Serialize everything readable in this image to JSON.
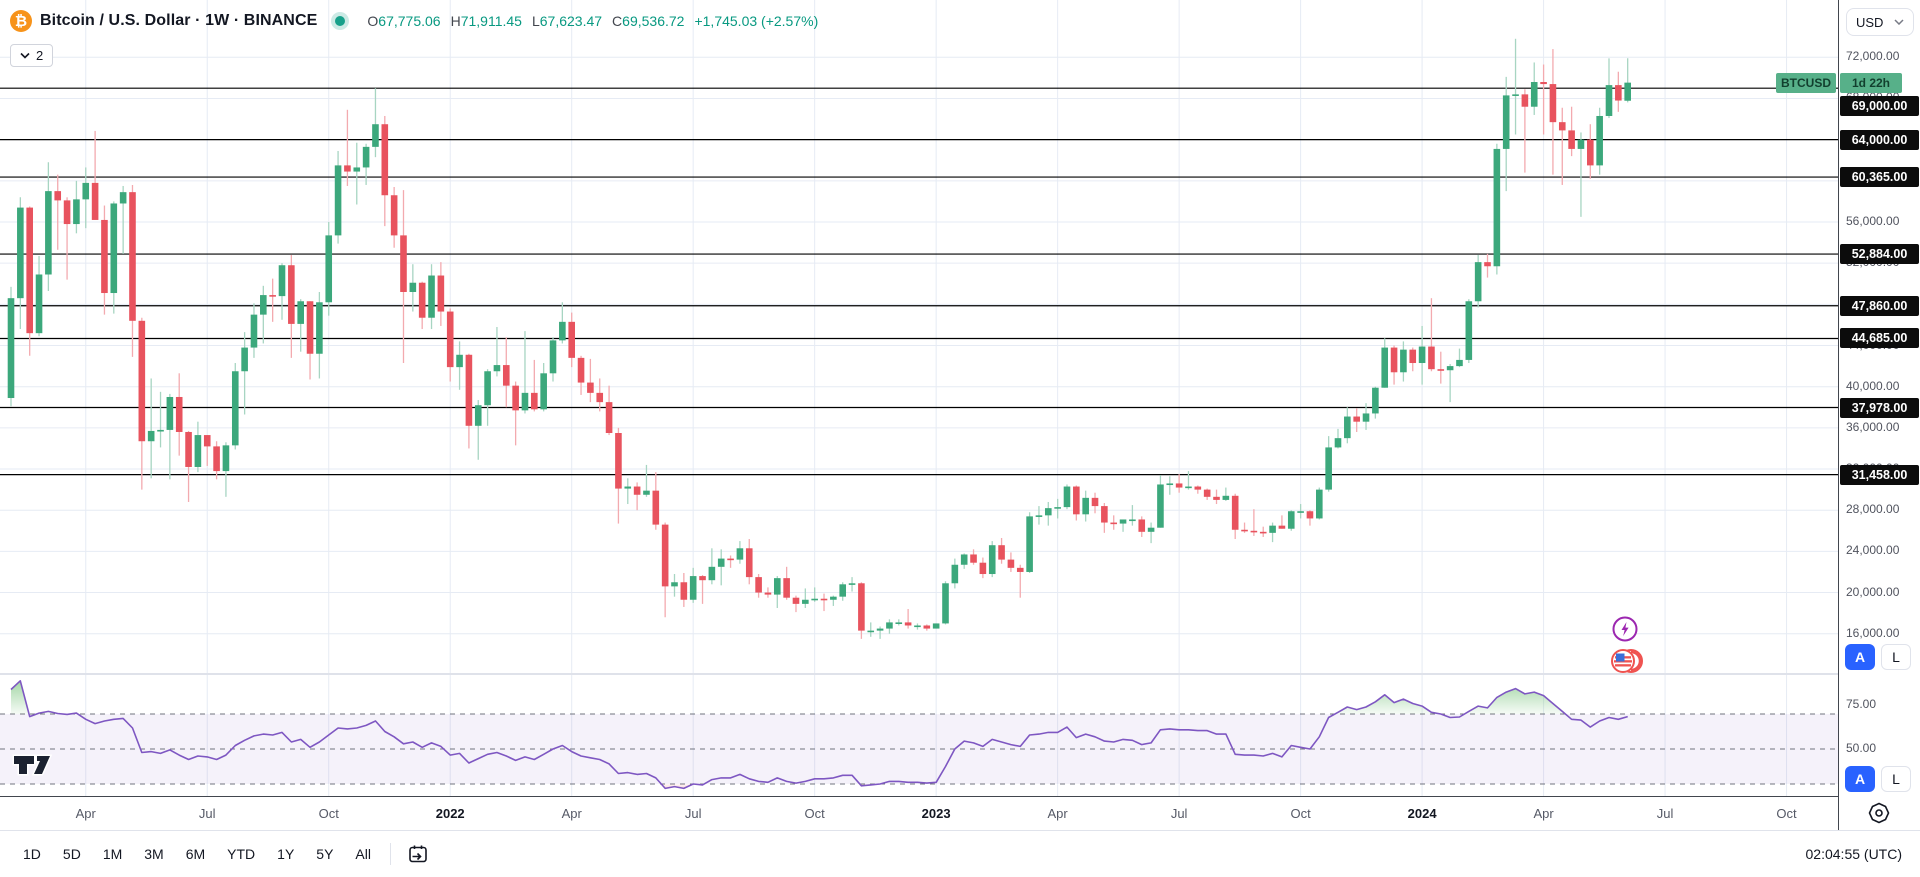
{
  "header": {
    "title": "Bitcoin / U.S. Dollar · 1W · BINANCE",
    "collapse_count": "2",
    "ohlc": [
      {
        "k": "O",
        "v": "67,775.06"
      },
      {
        "k": "H",
        "v": "71,911.45"
      },
      {
        "k": "L",
        "v": "67,623.47"
      },
      {
        "k": "C",
        "v": "69,536.72"
      }
    ],
    "change": "+1,745.03 (+2.57%)"
  },
  "price_axis": {
    "currency": "USD",
    "grid_labels": [
      {
        "price": 72000,
        "label": "72,000.00"
      },
      {
        "price": 68000,
        "label": "68,000.00"
      },
      {
        "price": 64000,
        "label": "64,000.00"
      },
      {
        "price": 60000,
        "label": "60,000.00"
      },
      {
        "price": 56000,
        "label": "56,000.00"
      },
      {
        "price": 52000,
        "label": "52,000.00"
      },
      {
        "price": 48000,
        "label": "48,000.00"
      },
      {
        "price": 44000,
        "label": "44,000.00"
      },
      {
        "price": 40000,
        "label": "40,000.00"
      },
      {
        "price": 36000,
        "label": "36,000.00"
      },
      {
        "price": 32000,
        "label": "32,000.00"
      },
      {
        "price": 28000,
        "label": "28,000.00"
      },
      {
        "price": 24000,
        "label": "24,000.00"
      },
      {
        "price": 20000,
        "label": "20,000.00"
      },
      {
        "price": 16000,
        "label": "16,000.00"
      }
    ],
    "level_badges": [
      {
        "price": 69000,
        "label": "69,000.00"
      },
      {
        "price": 64000,
        "label": "64,000.00"
      },
      {
        "price": 60365,
        "label": "60,365.00"
      },
      {
        "price": 52884,
        "label": "52,884.00"
      },
      {
        "price": 47860,
        "label": "47,860.00"
      },
      {
        "price": 44685,
        "label": "44,685.00"
      },
      {
        "price": 37978,
        "label": "37,978.00"
      },
      {
        "price": 31458,
        "label": "31,458.00"
      }
    ],
    "a_button": "A",
    "l_button": "L"
  },
  "symbol_chip": {
    "label": "BTCUSD",
    "countdown": "1d 22h"
  },
  "rsi_axis": [
    {
      "value": 75,
      "label": "75.00"
    },
    {
      "value": 50,
      "label": "50.00"
    }
  ],
  "time_axis": {
    "ticks": [
      {
        "label": "Apr",
        "week": 8,
        "year": false
      },
      {
        "label": "Jul",
        "week": 21,
        "year": false
      },
      {
        "label": "Oct",
        "week": 34,
        "year": false
      },
      {
        "label": "2022",
        "week": 47,
        "year": true
      },
      {
        "label": "Apr",
        "week": 60,
        "year": false
      },
      {
        "label": "Jul",
        "week": 73,
        "year": false
      },
      {
        "label": "Oct",
        "week": 86,
        "year": false
      },
      {
        "label": "2023",
        "week": 99,
        "year": true
      },
      {
        "label": "Apr",
        "week": 112,
        "year": false
      },
      {
        "label": "Jul",
        "week": 125,
        "year": false
      },
      {
        "label": "Oct",
        "week": 138,
        "year": false
      },
      {
        "label": "2024",
        "week": 151,
        "year": true
      },
      {
        "label": "Apr",
        "week": 164,
        "year": false
      },
      {
        "label": "Jul",
        "week": 177,
        "year": false
      },
      {
        "label": "Oct",
        "week": 190,
        "year": false
      }
    ]
  },
  "toolbar": {
    "ranges": [
      "1D",
      "5D",
      "1M",
      "3M",
      "6M",
      "YTD",
      "1Y",
      "5Y",
      "All"
    ],
    "clock": "02:04:55 (UTC)"
  },
  "chart_data": {
    "type": "candlestick_with_rsi",
    "symbol": "BTCUSD",
    "interval": "1W",
    "level_lines": [
      69000,
      64000,
      60365,
      52884,
      47860,
      44685,
      37978,
      31458
    ],
    "price_grid": {
      "min": 16000,
      "max": 72000,
      "step": 4000
    },
    "rsi_bands": [
      70,
      50,
      30
    ],
    "candles_usd_thousands": [
      [
        38.9,
        49.7,
        38.1,
        48.6
      ],
      [
        48.6,
        58.4,
        45.6,
        57.4
      ],
      [
        57.4,
        57.5,
        43.0,
        45.2
      ],
      [
        45.2,
        52.7,
        44.9,
        50.9
      ],
      [
        50.9,
        61.8,
        49.3,
        59.0
      ],
      [
        59.0,
        60.6,
        53.3,
        58.1
      ],
      [
        58.1,
        58.4,
        50.4,
        55.8
      ],
      [
        55.8,
        60.0,
        54.9,
        58.2
      ],
      [
        58.2,
        61.3,
        55.4,
        59.8
      ],
      [
        59.8,
        64.85,
        59.5,
        56.2
      ],
      [
        56.2,
        57.6,
        47.0,
        49.1
      ],
      [
        49.1,
        58.0,
        47.1,
        57.8
      ],
      [
        57.8,
        59.5,
        52.9,
        58.9
      ],
      [
        58.9,
        59.6,
        42.9,
        46.4
      ],
      [
        46.4,
        46.7,
        30.0,
        34.7
      ],
      [
        34.7,
        40.8,
        31.1,
        35.7
      ],
      [
        35.7,
        39.5,
        34.1,
        35.8
      ],
      [
        35.8,
        39.3,
        31.0,
        39.0
      ],
      [
        39.0,
        41.3,
        33.3,
        35.6
      ],
      [
        35.6,
        35.7,
        28.8,
        32.2
      ],
      [
        32.2,
        36.6,
        31.7,
        35.3
      ],
      [
        35.3,
        35.3,
        32.3,
        34.2
      ],
      [
        34.2,
        34.7,
        31.0,
        31.8
      ],
      [
        31.8,
        34.6,
        29.3,
        34.3
      ],
      [
        34.3,
        42.3,
        33.9,
        41.5
      ],
      [
        41.5,
        45.3,
        37.3,
        43.8
      ],
      [
        43.8,
        48.1,
        42.8,
        47.0
      ],
      [
        47.0,
        49.8,
        44.2,
        48.9
      ],
      [
        48.9,
        50.5,
        46.3,
        48.8
      ],
      [
        48.8,
        52.0,
        46.5,
        51.8
      ],
      [
        51.8,
        52.8,
        42.8,
        46.1
      ],
      [
        46.1,
        48.5,
        43.4,
        48.3
      ],
      [
        48.3,
        48.3,
        40.7,
        43.2
      ],
      [
        43.2,
        49.2,
        40.8,
        48.2
      ],
      [
        48.2,
        56.0,
        46.9,
        54.7
      ],
      [
        54.7,
        62.9,
        53.9,
        61.5
      ],
      [
        61.5,
        66.9,
        59.5,
        60.9
      ],
      [
        60.9,
        63.7,
        57.7,
        61.3
      ],
      [
        61.3,
        63.6,
        59.6,
        63.3
      ],
      [
        63.3,
        69.0,
        62.3,
        65.5
      ],
      [
        65.5,
        66.3,
        55.6,
        58.6
      ],
      [
        58.6,
        59.4,
        53.5,
        54.7
      ],
      [
        54.7,
        59.1,
        42.3,
        49.2
      ],
      [
        49.2,
        51.9,
        47.3,
        50.1
      ],
      [
        50.1,
        50.2,
        45.6,
        46.7
      ],
      [
        46.7,
        51.9,
        45.6,
        50.8
      ],
      [
        50.8,
        52.1,
        45.9,
        47.3
      ],
      [
        47.3,
        47.6,
        40.5,
        41.9
      ],
      [
        41.9,
        44.4,
        39.7,
        43.1
      ],
      [
        43.1,
        43.2,
        34.0,
        36.2
      ],
      [
        36.2,
        38.7,
        32.9,
        38.2
      ],
      [
        38.2,
        41.7,
        36.2,
        41.5
      ],
      [
        41.5,
        45.8,
        41.0,
        42.1
      ],
      [
        42.1,
        44.8,
        38.0,
        40.1
      ],
      [
        40.1,
        40.5,
        34.3,
        37.7
      ],
      [
        37.7,
        45.4,
        37.4,
        39.4
      ],
      [
        39.4,
        42.6,
        37.6,
        37.8
      ],
      [
        37.8,
        42.3,
        37.6,
        41.3
      ],
      [
        41.3,
        44.8,
        40.5,
        44.5
      ],
      [
        44.5,
        48.2,
        44.2,
        46.3
      ],
      [
        46.3,
        47.2,
        41.9,
        42.8
      ],
      [
        42.8,
        43.0,
        39.2,
        40.4
      ],
      [
        40.4,
        42.7,
        38.5,
        39.4
      ],
      [
        39.4,
        40.8,
        37.6,
        38.5
      ],
      [
        38.5,
        40.1,
        35.3,
        35.5
      ],
      [
        35.5,
        36.0,
        26.7,
        30.1
      ],
      [
        30.1,
        31.1,
        28.6,
        30.3
      ],
      [
        30.3,
        30.7,
        28.0,
        29.5
      ],
      [
        29.5,
        32.4,
        29.3,
        29.9
      ],
      [
        29.9,
        31.7,
        26.1,
        26.6
      ],
      [
        26.6,
        26.8,
        17.6,
        20.6
      ],
      [
        20.6,
        21.8,
        19.6,
        21.0
      ],
      [
        21.0,
        21.9,
        18.6,
        19.3
      ],
      [
        19.3,
        22.4,
        19.0,
        21.6
      ],
      [
        21.6,
        21.7,
        18.9,
        21.2
      ],
      [
        21.2,
        24.3,
        20.8,
        22.5
      ],
      [
        22.5,
        24.2,
        20.7,
        23.3
      ],
      [
        23.3,
        23.6,
        22.4,
        23.2
      ],
      [
        23.2,
        25.0,
        22.8,
        24.3
      ],
      [
        24.3,
        25.2,
        20.8,
        21.5
      ],
      [
        21.5,
        21.8,
        19.5,
        20.0
      ],
      [
        20.0,
        20.5,
        19.5,
        19.8
      ],
      [
        19.8,
        21.6,
        18.5,
        21.4
      ],
      [
        21.4,
        22.5,
        19.3,
        19.5
      ],
      [
        19.5,
        19.7,
        18.1,
        18.9
      ],
      [
        18.9,
        20.4,
        18.5,
        19.3
      ],
      [
        19.3,
        20.5,
        19.1,
        19.4
      ],
      [
        19.4,
        19.9,
        18.2,
        19.3
      ],
      [
        19.3,
        19.7,
        18.7,
        19.6
      ],
      [
        19.6,
        21.0,
        19.2,
        20.8
      ],
      [
        20.8,
        21.5,
        20.1,
        20.9
      ],
      [
        20.9,
        21.0,
        15.5,
        16.3
      ],
      [
        16.3,
        17.1,
        15.7,
        16.3
      ],
      [
        16.3,
        16.7,
        15.5,
        16.5
      ],
      [
        16.5,
        17.4,
        16.0,
        17.1
      ],
      [
        17.1,
        17.4,
        16.8,
        17.1
      ],
      [
        17.1,
        18.4,
        16.5,
        16.8
      ],
      [
        16.8,
        17.0,
        16.4,
        16.8
      ],
      [
        16.8,
        16.9,
        16.3,
        16.5
      ],
      [
        16.5,
        17.0,
        16.5,
        17.0
      ],
      [
        17.0,
        21.1,
        16.9,
        20.9
      ],
      [
        20.9,
        23.3,
        20.4,
        22.7
      ],
      [
        22.7,
        23.8,
        22.3,
        23.7
      ],
      [
        23.7,
        24.2,
        22.7,
        22.9
      ],
      [
        22.9,
        23.4,
        21.4,
        21.8
      ],
      [
        21.8,
        25.0,
        21.5,
        24.6
      ],
      [
        24.6,
        25.3,
        22.8,
        23.2
      ],
      [
        23.2,
        23.9,
        22.0,
        22.4
      ],
      [
        22.4,
        22.7,
        19.5,
        22.0
      ],
      [
        22.0,
        27.8,
        21.9,
        27.4
      ],
      [
        27.4,
        28.4,
        26.6,
        27.5
      ],
      [
        27.5,
        28.8,
        26.5,
        28.2
      ],
      [
        28.2,
        29.1,
        27.2,
        28.3
      ],
      [
        28.3,
        30.5,
        28.1,
        30.3
      ],
      [
        30.3,
        30.4,
        27.0,
        27.6
      ],
      [
        27.6,
        29.9,
        26.9,
        29.2
      ],
      [
        29.2,
        29.7,
        27.7,
        28.4
      ],
      [
        28.4,
        28.7,
        25.8,
        26.8
      ],
      [
        26.8,
        27.5,
        26.1,
        26.7
      ],
      [
        26.7,
        27.1,
        25.9,
        27.1
      ],
      [
        27.1,
        28.5,
        26.5,
        27.1
      ],
      [
        27.1,
        27.4,
        25.4,
        25.9
      ],
      [
        25.9,
        26.8,
        24.8,
        26.3
      ],
      [
        26.3,
        31.4,
        26.3,
        30.5
      ],
      [
        30.5,
        31.3,
        29.5,
        30.6
      ],
      [
        30.6,
        31.5,
        29.7,
        30.2
      ],
      [
        30.2,
        31.8,
        30.0,
        30.3
      ],
      [
        30.3,
        30.4,
        29.6,
        30.0
      ],
      [
        30.0,
        30.1,
        29.0,
        29.3
      ],
      [
        29.3,
        30.0,
        28.6,
        29.0
      ],
      [
        29.0,
        30.2,
        28.9,
        29.4
      ],
      [
        29.4,
        29.6,
        25.2,
        26.1
      ],
      [
        26.1,
        26.8,
        25.8,
        26.0
      ],
      [
        26.0,
        28.1,
        25.5,
        25.9
      ],
      [
        25.9,
        26.4,
        25.4,
        25.8
      ],
      [
        25.8,
        26.8,
        24.9,
        26.5
      ],
      [
        26.5,
        27.5,
        26.2,
        26.2
      ],
      [
        26.2,
        28.0,
        26.0,
        27.9
      ],
      [
        27.9,
        28.6,
        27.2,
        27.9
      ],
      [
        27.9,
        28.0,
        26.5,
        27.2
      ],
      [
        27.2,
        30.2,
        27.1,
        30.0
      ],
      [
        30.0,
        35.2,
        29.8,
        34.1
      ],
      [
        34.1,
        35.9,
        34.0,
        35.0
      ],
      [
        35.0,
        38.0,
        34.5,
        37.1
      ],
      [
        37.1,
        37.9,
        35.6,
        36.6
      ],
      [
        36.6,
        38.4,
        35.8,
        37.4
      ],
      [
        37.4,
        40.0,
        36.9,
        39.9
      ],
      [
        39.9,
        44.7,
        39.9,
        43.8
      ],
      [
        43.8,
        44.0,
        40.2,
        41.4
      ],
      [
        41.4,
        44.4,
        40.5,
        43.6
      ],
      [
        43.6,
        43.8,
        41.5,
        42.3
      ],
      [
        42.3,
        45.9,
        40.2,
        43.9
      ],
      [
        43.9,
        48.6,
        41.5,
        41.7
      ],
      [
        41.7,
        43.4,
        40.3,
        41.6
      ],
      [
        41.6,
        42.2,
        38.5,
        42.0
      ],
      [
        42.0,
        43.7,
        41.9,
        42.6
      ],
      [
        42.6,
        48.5,
        42.3,
        48.3
      ],
      [
        48.3,
        52.8,
        47.7,
        52.1
      ],
      [
        52.1,
        52.9,
        50.6,
        51.7
      ],
      [
        51.7,
        63.6,
        50.9,
        63.1
      ],
      [
        63.1,
        70.1,
        59.0,
        68.3
      ],
      [
        68.3,
        73.8,
        64.5,
        68.4
      ],
      [
        68.4,
        68.9,
        60.8,
        67.2
      ],
      [
        67.2,
        71.5,
        66.4,
        69.6
      ],
      [
        69.6,
        71.3,
        64.5,
        69.4
      ],
      [
        69.4,
        72.8,
        60.6,
        65.7
      ],
      [
        65.7,
        67.1,
        59.6,
        64.9
      ],
      [
        64.9,
        67.2,
        62.4,
        63.1
      ],
      [
        63.1,
        64.7,
        56.5,
        64.0
      ],
      [
        64.0,
        65.5,
        60.2,
        61.5
      ],
      [
        61.5,
        67.1,
        60.6,
        66.3
      ],
      [
        66.3,
        71.9,
        66.1,
        69.3
      ],
      [
        69.3,
        70.6,
        66.7,
        67.8
      ],
      [
        67.78,
        71.91,
        67.62,
        69.54
      ]
    ],
    "rsi": [
      84,
      89,
      68.5,
      70.5,
      71.5,
      70.3,
      69.8,
      70.5,
      67,
      64.5,
      66,
      67,
      67.5,
      62,
      48,
      48.5,
      47.5,
      49.5,
      46.5,
      44,
      46,
      45.5,
      44,
      46.5,
      52,
      55,
      57.5,
      58.5,
      58,
      59.5,
      54,
      55.5,
      51,
      54,
      58,
      62,
      61.5,
      62,
      63.5,
      66,
      60,
      57,
      53,
      54,
      51,
      53.5,
      51.5,
      46.5,
      47.5,
      42,
      44.5,
      47,
      48,
      46,
      43.5,
      45.5,
      44,
      47,
      50,
      52,
      48.5,
      46,
      45,
      44,
      41.5,
      36,
      36.5,
      35.5,
      36,
      33.5,
      27.5,
      28.5,
      27.5,
      30,
      29.5,
      32.5,
      33.5,
      33.5,
      35.5,
      33,
      31.5,
      31,
      33.5,
      31.5,
      30.5,
      31.5,
      33,
      33,
      33.5,
      35,
      35,
      29,
      29.5,
      30,
      31.5,
      31.5,
      31,
      31,
      30.5,
      31,
      40,
      50,
      54.5,
      53.5,
      51.5,
      55.5,
      54,
      52.5,
      51.5,
      58,
      58.5,
      59.5,
      59.5,
      62.5,
      56.5,
      58.5,
      57,
      54.5,
      54,
      55.5,
      55,
      52.5,
      53.5,
      61,
      61.5,
      61,
      61,
      60.5,
      60.5,
      58.5,
      58.5,
      47,
      46.5,
      46.5,
      46,
      47.5,
      45.5,
      52,
      51,
      50,
      57,
      68,
      71,
      74,
      72.5,
      74,
      77,
      81,
      76.5,
      78.5,
      76,
      74.5,
      71,
      70,
      68,
      68.3,
      71.5,
      74.5,
      73.5,
      79.5,
      82.5,
      84.5,
      81.5,
      82.5,
      80.5,
      76,
      71.5,
      67,
      66.5,
      62.5,
      66,
      68,
      67,
      68.5
    ]
  },
  "colors": {
    "up_body": "#3CA87C",
    "down_body": "#E8535E",
    "up_wick": "#A7D5C2",
    "down_wick": "#F3AAAF",
    "level_line": "#000000",
    "grid": "#e6ebf4",
    "rsi_line": "#7E57C2",
    "rsi_band_fill": "rgba(126,87,194,0.08)",
    "rsi_dash": "#71747f",
    "overbought_fill": "#4CAF50",
    "oversold_fill": "#EF5350",
    "badge_bg": "#0c0c0c",
    "chip_bg": "#57B089",
    "accent_blue": "#2962FF",
    "bitcoin_orange": "#F7931A",
    "value_green": "#089981"
  }
}
